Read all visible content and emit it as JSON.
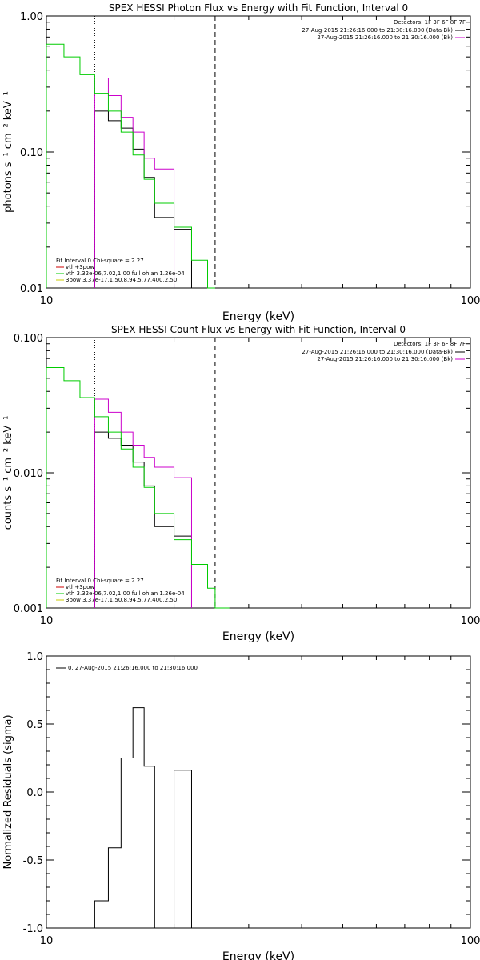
{
  "chart_data": [
    {
      "type": "line",
      "title": "SPEX HESSI Photon Flux vs Energy with Fit Function, Interval 0",
      "xlabel": "Energy (keV)",
      "ylabel": "photons s⁻¹ cm⁻² keV⁻¹",
      "xscale": "log",
      "yscale": "log",
      "xlim": [
        10,
        100
      ],
      "ylim": [
        0.01,
        1.0
      ],
      "xticks": [
        "10",
        "100"
      ],
      "yticks": [
        "1.00",
        "0.10",
        "0.01"
      ],
      "header": {
        "detectors": "Detectors: 1F 3F 6F 8F 7F",
        "lines": [
          {
            "text": "27-Aug-2015 21:26:16.000 to 21:30:16.000 (Data-Bk)",
            "color": "#000000"
          },
          {
            "text": "27-Aug-2015 21:26:16.000 to 21:30:16.000 (Bk)",
            "color": "#cc00cc"
          }
        ]
      },
      "legend": {
        "position": "bottom-left",
        "fit_line": "Fit Interval 0   Chi-square = 2.27",
        "entries": [
          {
            "text": "vth+3pow",
            "color": "#cc0000"
          },
          {
            "text": "vth 3.32e-06,7.02,1.00  full ohian 1.26e-04",
            "color": "#00cc00"
          },
          {
            "text": "3pow 3.37e-17,1.50,8.94,5.77,400,2.50",
            "color": "#cccc00"
          }
        ]
      },
      "vlines": [
        {
          "x": 13.0,
          "style": "dotted"
        },
        {
          "x": 25.0,
          "style": "dashed"
        }
      ],
      "bin_edges": [
        10,
        11,
        12,
        13,
        14,
        15,
        16,
        17,
        18,
        20,
        22,
        24,
        25,
        27,
        29,
        31,
        34
      ],
      "series": [
        {
          "color": "#000000",
          "x0": 13,
          "values": [
            0.2,
            0.17,
            0.15,
            0.105,
            0.065,
            0.033,
            0.027
          ]
        },
        {
          "color": "#cc00cc",
          "x0": 13,
          "values": [
            0.35,
            0.26,
            0.18,
            0.14,
            0.09,
            0.075
          ]
        },
        {
          "color": "#00cc00",
          "x0": 10,
          "values": [
            0.62,
            0.5,
            0.37,
            0.27,
            0.2,
            0.14,
            0.095,
            0.063,
            0.042,
            0.028,
            0.016,
            0.01
          ]
        }
      ]
    },
    {
      "type": "line",
      "title": "SPEX HESSI Count Flux vs Energy with Fit Function, Interval 0",
      "xlabel": "Energy (keV)",
      "ylabel": "counts s⁻¹ cm⁻² keV⁻¹",
      "xscale": "log",
      "yscale": "log",
      "xlim": [
        10,
        100
      ],
      "ylim": [
        0.001,
        0.1
      ],
      "xticks": [
        "10",
        "100"
      ],
      "yticks": [
        "0.100",
        "0.010",
        "0.001"
      ],
      "header": {
        "detectors": "Detectors: 1F 3F 6F 8F 7F",
        "lines": [
          {
            "text": "27-Aug-2015 21:26:16.000 to 21:30:16.000 (Data-Bk)",
            "color": "#000000"
          },
          {
            "text": "27-Aug-2015 21:26:16.000 to 21:30:16.000 (Bk)",
            "color": "#cc00cc"
          }
        ]
      },
      "legend": {
        "position": "bottom-left",
        "fit_line": "Fit Interval 0   Chi-square = 2.27",
        "entries": [
          {
            "text": "vth+3pow",
            "color": "#cc0000"
          },
          {
            "text": "vth 3.32e-06,7.02,1.00  full ohian 1.26e-04",
            "color": "#00cc00"
          },
          {
            "text": "3pow 3.37e-17,1.50,8.94,5.77,400,2.50",
            "color": "#cccc00"
          }
        ]
      },
      "vlines": [
        {
          "x": 13.0,
          "style": "dotted"
        },
        {
          "x": 25.0,
          "style": "dashed"
        }
      ],
      "bin_edges": [
        10,
        11,
        12,
        13,
        14,
        15,
        16,
        17,
        18,
        20,
        22,
        24,
        25,
        27,
        29,
        31,
        34
      ],
      "series": [
        {
          "color": "#000000",
          "x0": 13,
          "values": [
            0.02,
            0.018,
            0.016,
            0.012,
            0.008,
            0.004,
            0.0034
          ]
        },
        {
          "color": "#cc00cc",
          "x0": 13,
          "values": [
            0.035,
            0.028,
            0.02,
            0.016,
            0.013,
            0.011,
            0.0092
          ]
        },
        {
          "color": "#00cc00",
          "x0": 10,
          "values": [
            0.06,
            0.048,
            0.036,
            0.026,
            0.02,
            0.015,
            0.011,
            0.0078,
            0.005,
            0.0032,
            0.0021,
            0.0014,
            0.001
          ]
        }
      ]
    },
    {
      "type": "line",
      "title": "",
      "xlabel": "Energy (keV)",
      "ylabel": "Normalized Residuals (sigma)",
      "xscale": "log",
      "yscale": "linear",
      "xlim": [
        10,
        100
      ],
      "ylim": [
        -1.0,
        1.0
      ],
      "xticks": [
        "10",
        "100"
      ],
      "yticks": [
        "1.0",
        "0.5",
        "0.0",
        "-0.5",
        "-1.0"
      ],
      "legend": {
        "position": "top-left",
        "entries": [
          {
            "text": "0. 27-Aug-2015 21:26:16.000 to 21:30:16.000",
            "color": "#000000"
          }
        ]
      },
      "bin_edges": [
        13,
        14,
        15,
        16,
        17,
        18,
        20,
        22,
        24,
        25
      ],
      "series": [
        {
          "color": "#000000",
          "x0": 13,
          "values": [
            -0.8,
            -0.41,
            0.25,
            0.62,
            0.19,
            -1.0,
            0.16
          ]
        }
      ]
    }
  ]
}
